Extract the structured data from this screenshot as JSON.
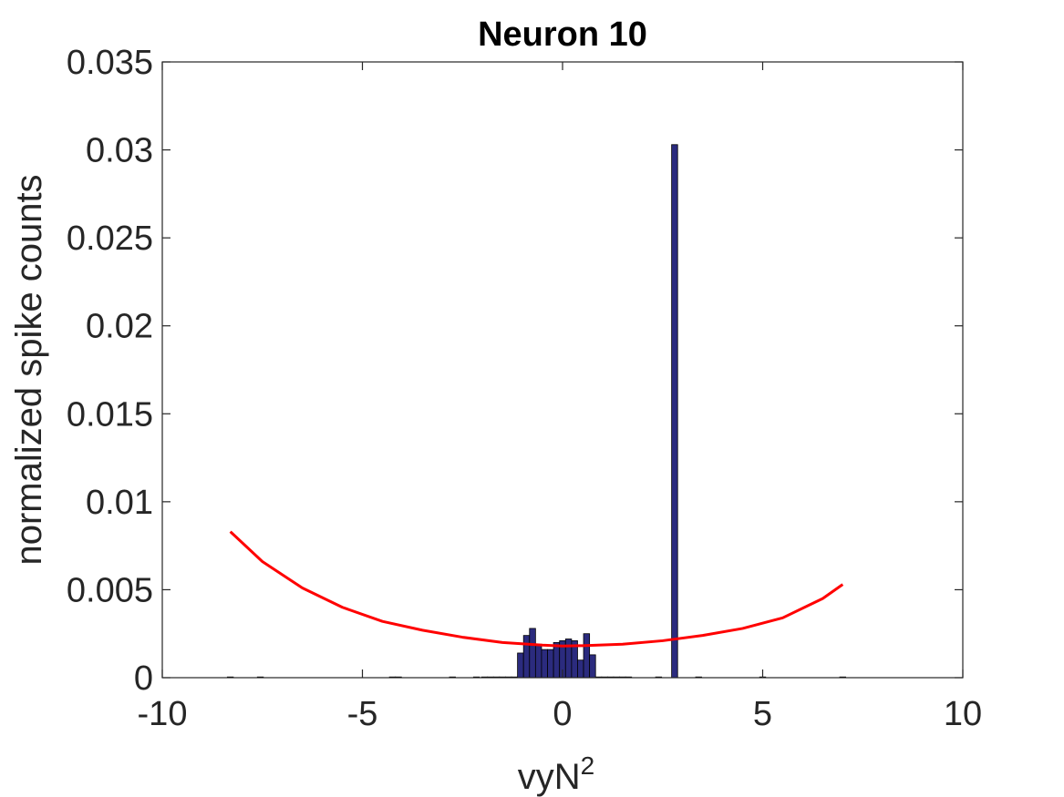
{
  "chart_data": {
    "type": "bar",
    "title": "Neuron 10",
    "xlabel": "vyN",
    "xlabel_superscript": "2",
    "ylabel": "normalized spike counts",
    "xlim": [
      -10,
      10
    ],
    "ylim": [
      0,
      0.035
    ],
    "xticks": [
      -10,
      -5,
      0,
      5,
      10
    ],
    "xtick_labels": [
      "-10",
      "-5",
      "0",
      "5",
      "10"
    ],
    "yticks": [
      0,
      0.005,
      0.01,
      0.015,
      0.02,
      0.025,
      0.03,
      0.035
    ],
    "ytick_labels": [
      "0",
      "0.005",
      "0.01",
      "0.015",
      "0.02",
      "0.025",
      "0.03",
      "0.035"
    ],
    "grid": false,
    "box": true,
    "bar_width": 0.15,
    "series": [
      {
        "kind": "histogram",
        "color": "#2b2b7e",
        "edge_color": "#000000",
        "x": [
          -8.3,
          -7.55,
          -4.25,
          -4.1,
          -2.75,
          -2.15,
          -1.95,
          -1.8,
          -1.65,
          -1.5,
          -1.35,
          -1.2,
          -1.05,
          -0.9,
          -0.75,
          -0.6,
          -0.45,
          -0.3,
          -0.15,
          0.0,
          0.15,
          0.3,
          0.45,
          0.6,
          0.75,
          0.9,
          1.05,
          1.2,
          1.35,
          1.5,
          1.65,
          2.4,
          2.8,
          3.4,
          5.0,
          7.0
        ],
        "values": [
          0,
          0,
          0,
          0,
          0,
          0,
          0,
          0,
          0,
          0,
          0,
          0,
          0.0014,
          0.0024,
          0.0028,
          0.0019,
          0.0016,
          0.0016,
          0.002,
          0.0021,
          0.0022,
          0.0021,
          0.001,
          0.0025,
          0.0013,
          0,
          0,
          0,
          0,
          0,
          0,
          0,
          0.0303,
          0,
          0,
          0
        ]
      },
      {
        "kind": "line",
        "color": "#ff0000",
        "x": [
          -8.3,
          -7.5,
          -6.5,
          -5.5,
          -4.5,
          -3.5,
          -2.5,
          -1.5,
          -0.5,
          0.0,
          0.5,
          1.5,
          2.5,
          3.5,
          4.5,
          5.5,
          6.5,
          7.0
        ],
        "values": [
          0.0083,
          0.0066,
          0.0051,
          0.004,
          0.0032,
          0.0027,
          0.0023,
          0.002,
          0.00185,
          0.0018,
          0.00182,
          0.0019,
          0.0021,
          0.0024,
          0.0028,
          0.0034,
          0.0045,
          0.0053
        ]
      }
    ]
  }
}
